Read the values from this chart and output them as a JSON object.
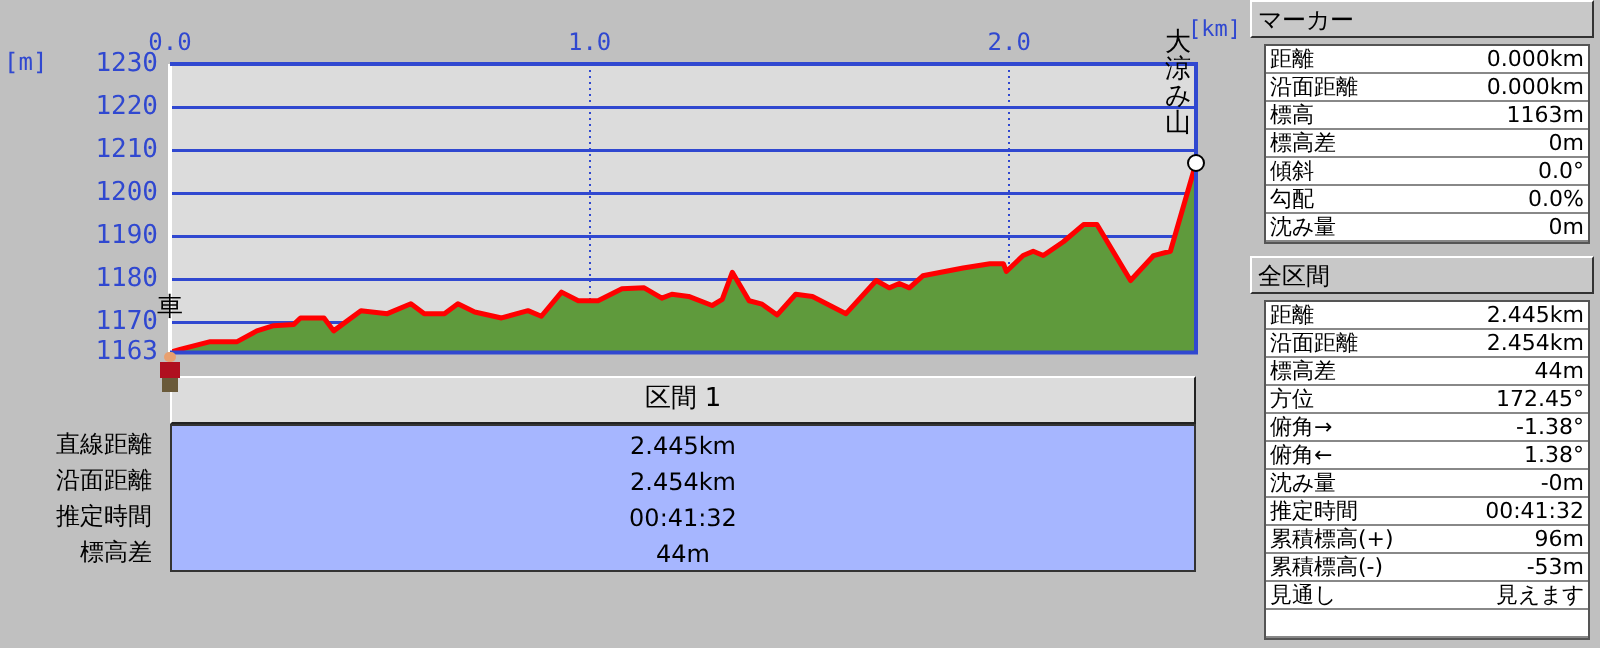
{
  "chart_data": {
    "type": "area",
    "xlabel": "[km]",
    "ylabel": "[m]",
    "series": [
      {
        "color": "#5f9a3c",
        "x": [
          0,
          0.024,
          0.096,
          0.16,
          0.207,
          0.247,
          0.295,
          0.311,
          0.367,
          0.39,
          0.455,
          0.518,
          0.574,
          0.606,
          0.654,
          0.686,
          0.726,
          0.79,
          0.853,
          0.885,
          0.933,
          0.973,
          1.02,
          1.077,
          1.13,
          1.172,
          1.196,
          1.236,
          1.292,
          1.316,
          1.34,
          1.38,
          1.411,
          1.447,
          1.491,
          1.531,
          1.611,
          1.683,
          1.714,
          1.738,
          1.762,
          1.794,
          1.89,
          1.954,
          1.986,
          1.993,
          2.033,
          2.057,
          2.081,
          2.129,
          2.177,
          2.209,
          2.289,
          2.344,
          2.384,
          2.445
        ],
        "values": [
          1163,
          1163.7,
          1165.5,
          1165.5,
          1168,
          1169.2,
          1169.5,
          1171,
          1171,
          1168,
          1172.7,
          1172,
          1174.3,
          1172,
          1172,
          1174.3,
          1172.4,
          1171,
          1172.7,
          1171.4,
          1177,
          1175,
          1175,
          1177.8,
          1178,
          1175.6,
          1176.5,
          1176,
          1173.9,
          1175.3,
          1181.6,
          1175,
          1174.2,
          1171.7,
          1176.5,
          1176,
          1172,
          1179.7,
          1178,
          1179,
          1178,
          1180.8,
          1182.6,
          1183.6,
          1183.6,
          1181.8,
          1185.5,
          1186.5,
          1185.5,
          1188.7,
          1192.7,
          1192.7,
          1179.7,
          1185.5,
          1186.5,
          1207
        ]
      }
    ],
    "xlim": [
      0,
      2.445
    ],
    "xticks": [
      {
        "value": 0,
        "label": "0.0"
      },
      {
        "value": 1,
        "label": "1.0"
      },
      {
        "value": 2,
        "label": "2.0"
      }
    ],
    "ylim": [
      1163,
      1230
    ],
    "yticks": [
      1163,
      1170,
      1180,
      1190,
      1200,
      1210,
      1220,
      1230
    ],
    "grid": true,
    "annotations": [
      {
        "text": "車",
        "x": 0,
        "y": 1163
      },
      {
        "text": "大涼み山",
        "x": 2.445,
        "y": 1207
      },
      "区間 1",
      "直線距離",
      "2.445km",
      "沿面距離",
      "2.454km",
      "推定時間",
      "00:41:32",
      "標高差",
      "44m",
      "マーカー",
      "距離",
      "0.000km",
      "沿面距離",
      "0.000km",
      "標高",
      "1163m",
      "標高差",
      "0m",
      "傾斜",
      "0.0°",
      "勾配",
      "0.0%",
      "沈み量",
      "0m",
      "全区間",
      "距離",
      "2.445km",
      "沿面距離",
      "2.454km",
      "標高差",
      "44m",
      "方位",
      "172.45°",
      "俯角→",
      "-1.38°",
      "俯角←",
      "1.38°",
      "沈み量",
      "-0m",
      "推定時間",
      "00:41:32",
      "累積標高(+)",
      "96m",
      "累積標高(-)",
      "-53m",
      "見通し",
      "見えます"
    ]
  }
}
